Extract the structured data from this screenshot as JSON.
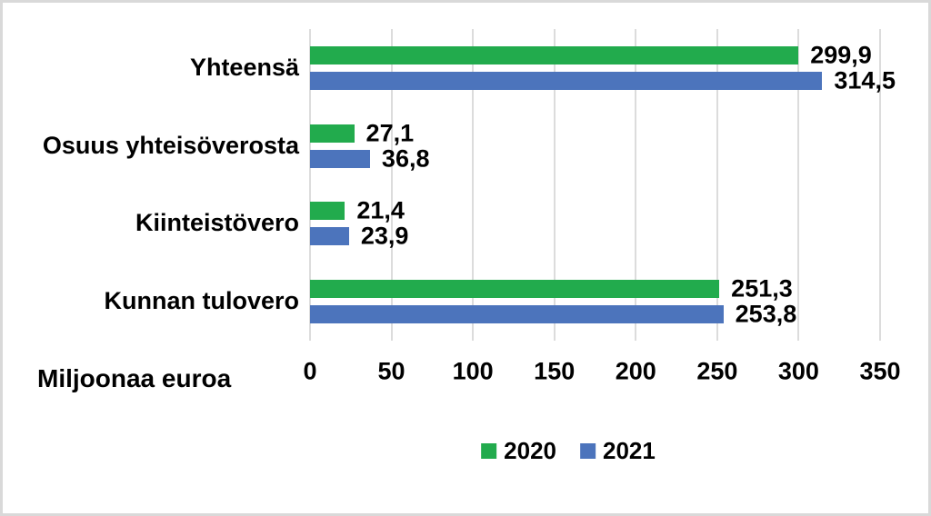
{
  "chart_data": {
    "type": "bar",
    "orientation": "horizontal",
    "categories": [
      "Yhteensä",
      "Osuus yhteisöverosta",
      "Kiinteistövero",
      "Kunnan tulovero"
    ],
    "series": [
      {
        "name": "2020",
        "color": "#22ab4d",
        "values": [
          299.9,
          27.1,
          21.4,
          251.3
        ],
        "value_labels": [
          "299,9",
          "27,1",
          "21,4",
          "251,3"
        ]
      },
      {
        "name": "2021",
        "color": "#4c74bc",
        "values": [
          314.5,
          36.8,
          23.9,
          253.8
        ],
        "value_labels": [
          "314,5",
          "36,8",
          "23,9",
          "253,8"
        ]
      }
    ],
    "xlabel": "Miljoonaa euroa",
    "xlim": [
      0,
      350
    ],
    "xticks": [
      0,
      50,
      100,
      150,
      200,
      250,
      300,
      350
    ],
    "xtick_labels": [
      "0",
      "50",
      "100",
      "150",
      "200",
      "250",
      "300",
      "350"
    ],
    "grid": "vertical",
    "legend_position": "bottom-center",
    "colors": {
      "grid": "#dcdcdc",
      "text": "#000000",
      "frame_border": "#d9d9d9",
      "background": "#ffffff"
    }
  }
}
